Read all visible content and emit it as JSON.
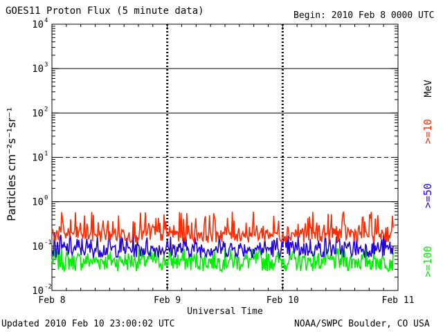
{
  "header": {
    "title": "GOES11 Proton Flux (5 minute data)",
    "begin": "Begin: 2010 Feb 8 0000 UTC"
  },
  "footer": {
    "updated": "Updated 2010 Feb 10 23:00:02 UTC",
    "source": "NOAA/SWPC Boulder, CO USA"
  },
  "legend": {
    "unit": "MeV",
    "items": [
      {
        "label": ">=10",
        "color": "#ff2a00"
      },
      {
        "label": ">=50",
        "color": "#2200dd"
      },
      {
        "label": ">=100",
        "color": "#00ee00"
      }
    ]
  },
  "chart_data": {
    "type": "line",
    "title": "GOES11 Proton Flux (5 minute data)",
    "xlabel": "Universal Time",
    "ylabel": "Particles cm⁻²s⁻¹sr⁻¹",
    "yscale": "log",
    "ylim": [
      0.01,
      10000
    ],
    "yticks": [
      {
        "value": 0.01,
        "base": "10",
        "exp": "-2"
      },
      {
        "value": 0.1,
        "base": "10",
        "exp": "-1"
      },
      {
        "value": 1,
        "base": "10",
        "exp": "0"
      },
      {
        "value": 10,
        "base": "10",
        "exp": "1"
      },
      {
        "value": 100,
        "base": "10",
        "exp": "2"
      },
      {
        "value": 1000,
        "base": "10",
        "exp": "3"
      },
      {
        "value": 10000,
        "base": "10",
        "exp": "4"
      }
    ],
    "xlim": [
      "2010-02-08 00:00",
      "2010-02-11 00:00"
    ],
    "xticks": [
      {
        "x": "2010-02-08 00:00",
        "label": "Feb 8"
      },
      {
        "x": "2010-02-09 00:00",
        "label": "Feb 9"
      },
      {
        "x": "2010-02-10 00:00",
        "label": "Feb 10"
      },
      {
        "x": "2010-02-11 00:00",
        "label": "Feb 11"
      }
    ],
    "data_end": "2010-02-10 23:00",
    "solid_gridlines": [
      1,
      100,
      1000
    ],
    "dashed_gridlines": [
      10
    ],
    "series": [
      {
        "name": ">=10",
        "color": "#ff2a00",
        "typical": 0.2,
        "min": 0.12,
        "max": 0.6
      },
      {
        "name": ">=50",
        "color": "#2200dd",
        "typical": 0.09,
        "min": 0.055,
        "max": 0.2
      },
      {
        "name": ">=100",
        "color": "#00ee00",
        "typical": 0.05,
        "min": 0.027,
        "max": 0.09
      }
    ]
  }
}
